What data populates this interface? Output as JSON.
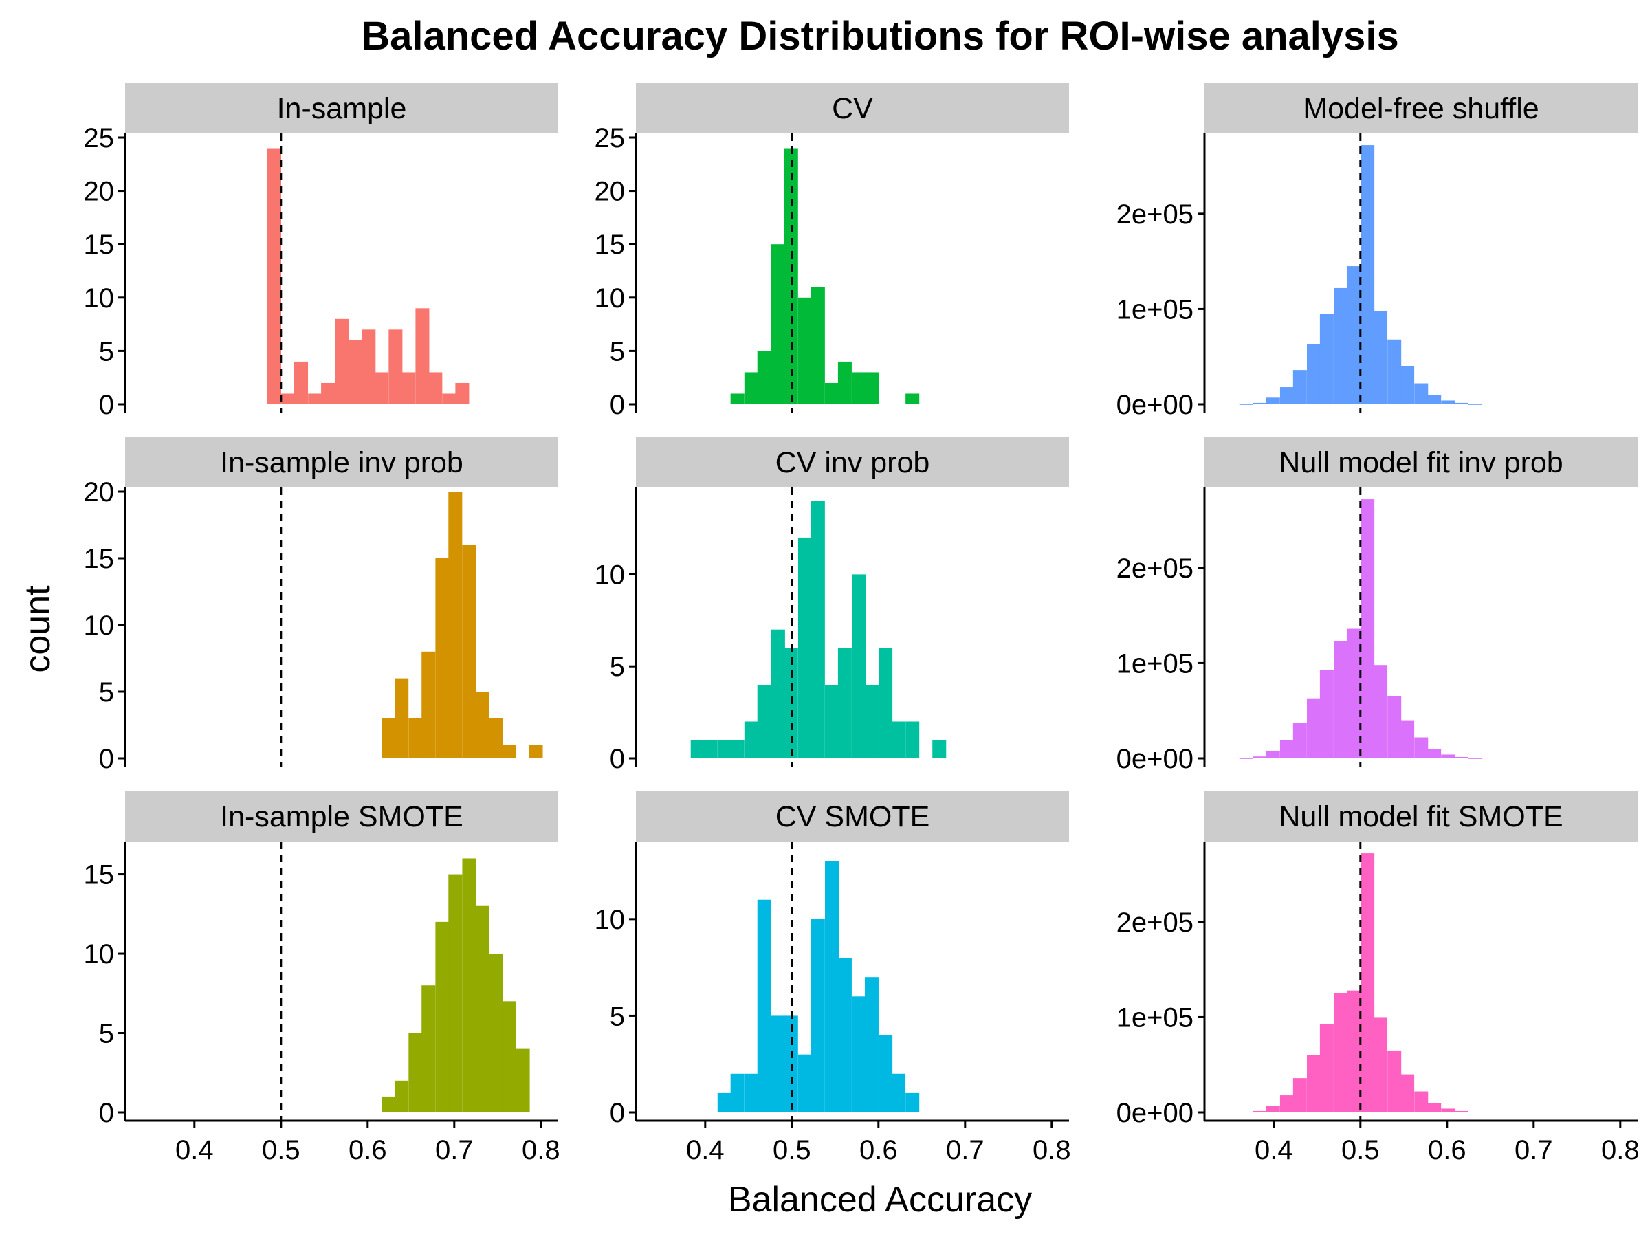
{
  "chart_data": {
    "type": "bar",
    "title": "Balanced Accuracy Distributions for ROI-wise analysis",
    "xlabel": "Balanced Accuracy",
    "ylabel": "count",
    "xlim": [
      0.32,
      0.82
    ],
    "x_ticks": [
      "0.4",
      "0.5",
      "0.6",
      "0.7",
      "0.8"
    ],
    "reference_line_x": 0.5,
    "grid": false,
    "legend": "none",
    "panels": [
      {
        "name": "In-sample",
        "color": "#F8766D",
        "binwidth": 0.0155,
        "ylim": [
          0,
          25
        ],
        "y_ticks": [
          {
            "value": 0,
            "label": "0"
          },
          {
            "value": 5,
            "label": "5"
          },
          {
            "value": 10,
            "label": "10"
          },
          {
            "value": 15,
            "label": "15"
          },
          {
            "value": 20,
            "label": "20"
          },
          {
            "value": 25,
            "label": "25"
          }
        ],
        "x": [
          0.492,
          0.508,
          0.523,
          0.539,
          0.554,
          0.57,
          0.585,
          0.601,
          0.616,
          0.632,
          0.647,
          0.663,
          0.678,
          0.694,
          0.709
        ],
        "values": [
          24,
          1,
          4,
          1,
          2,
          8,
          6,
          7,
          3,
          7,
          3,
          9,
          3,
          1,
          2
        ]
      },
      {
        "name": "CV",
        "color": "#00BA38",
        "binwidth": 0.0155,
        "ylim": [
          0,
          25
        ],
        "y_ticks": [
          {
            "value": 0,
            "label": "0"
          },
          {
            "value": 5,
            "label": "5"
          },
          {
            "value": 10,
            "label": "10"
          },
          {
            "value": 15,
            "label": "15"
          },
          {
            "value": 20,
            "label": "20"
          },
          {
            "value": 25,
            "label": "25"
          }
        ],
        "x": [
          0.437,
          0.453,
          0.468,
          0.484,
          0.499,
          0.515,
          0.53,
          0.546,
          0.561,
          0.577,
          0.592,
          0.608,
          0.623,
          0.639
        ],
        "values": [
          1,
          3,
          5,
          15,
          24,
          10,
          11,
          2,
          4,
          3,
          3,
          0,
          0,
          1
        ]
      },
      {
        "name": "Model-free shuffle",
        "color": "#619CFF",
        "binwidth": 0.0155,
        "ylim": [
          0,
          280000
        ],
        "y_ticks": [
          {
            "value": 0,
            "label": "0e+00"
          },
          {
            "value": 100000,
            "label": "1e+05"
          },
          {
            "value": 200000,
            "label": "2e+05"
          }
        ],
        "x": [
          0.368,
          0.384,
          0.399,
          0.415,
          0.43,
          0.446,
          0.461,
          0.477,
          0.492,
          0.508,
          0.523,
          0.539,
          0.554,
          0.57,
          0.585,
          0.601,
          0.616,
          0.632
        ],
        "values": [
          500,
          1500,
          7000,
          18000,
          36000,
          63000,
          95000,
          122000,
          145000,
          272000,
          98000,
          68000,
          40000,
          22000,
          10000,
          4000,
          1500,
          500
        ]
      },
      {
        "name": "In-sample inv prob",
        "color": "#D39200",
        "binwidth": 0.0155,
        "ylim": [
          0,
          20
        ],
        "y_ticks": [
          {
            "value": 0,
            "label": "0"
          },
          {
            "value": 5,
            "label": "5"
          },
          {
            "value": 10,
            "label": "10"
          },
          {
            "value": 15,
            "label": "15"
          },
          {
            "value": 20,
            "label": "20"
          }
        ],
        "x": [
          0.624,
          0.639,
          0.655,
          0.67,
          0.686,
          0.701,
          0.717,
          0.732,
          0.748,
          0.763,
          0.779,
          0.794
        ],
        "values": [
          3,
          6,
          3,
          8,
          15,
          20,
          16,
          5,
          3,
          1,
          0,
          1
        ]
      },
      {
        "name": "CV inv prob",
        "color": "#00C19F",
        "binwidth": 0.0155,
        "ylim": [
          0,
          14.5
        ],
        "y_ticks": [
          {
            "value": 0,
            "label": "0"
          },
          {
            "value": 5,
            "label": "5"
          },
          {
            "value": 10,
            "label": "10"
          }
        ],
        "x": [
          0.391,
          0.406,
          0.422,
          0.437,
          0.453,
          0.468,
          0.484,
          0.499,
          0.515,
          0.53,
          0.546,
          0.561,
          0.577,
          0.592,
          0.608,
          0.623,
          0.639,
          0.654,
          0.67
        ],
        "values": [
          1,
          1,
          1,
          1,
          2,
          4,
          7,
          6,
          12,
          14,
          4,
          6,
          10,
          4,
          6,
          2,
          2,
          0,
          1
        ]
      },
      {
        "name": "Null model fit inv prob",
        "color": "#DB72FB",
        "binwidth": 0.0155,
        "ylim": [
          0,
          280000
        ],
        "y_ticks": [
          {
            "value": 0,
            "label": "0e+00"
          },
          {
            "value": 100000,
            "label": "1e+05"
          },
          {
            "value": 200000,
            "label": "2e+05"
          }
        ],
        "x": [
          0.368,
          0.384,
          0.399,
          0.415,
          0.43,
          0.446,
          0.461,
          0.477,
          0.492,
          0.508,
          0.523,
          0.539,
          0.554,
          0.57,
          0.585,
          0.601,
          0.616,
          0.632
        ],
        "values": [
          500,
          2000,
          8000,
          19000,
          37000,
          63000,
          93000,
          123000,
          136000,
          272000,
          98000,
          65000,
          40000,
          22000,
          10000,
          4000,
          1500,
          500
        ]
      },
      {
        "name": "In-sample SMOTE",
        "color": "#93AA00",
        "binwidth": 0.0155,
        "ylim": [
          0,
          16.8
        ],
        "y_ticks": [
          {
            "value": 0,
            "label": "0"
          },
          {
            "value": 5,
            "label": "5"
          },
          {
            "value": 10,
            "label": "10"
          },
          {
            "value": 15,
            "label": "15"
          }
        ],
        "x": [
          0.624,
          0.639,
          0.655,
          0.67,
          0.686,
          0.701,
          0.717,
          0.732,
          0.748,
          0.763,
          0.779
        ],
        "values": [
          1,
          2,
          5,
          8,
          12,
          15,
          16,
          13,
          10,
          7,
          4
        ]
      },
      {
        "name": "CV SMOTE",
        "color": "#00B9E3",
        "binwidth": 0.0155,
        "ylim": [
          0,
          13.8
        ],
        "y_ticks": [
          {
            "value": 0,
            "label": "0"
          },
          {
            "value": 5,
            "label": "5"
          },
          {
            "value": 10,
            "label": "10"
          }
        ],
        "x": [
          0.422,
          0.437,
          0.453,
          0.468,
          0.484,
          0.499,
          0.515,
          0.53,
          0.546,
          0.561,
          0.577,
          0.592,
          0.608,
          0.623,
          0.639
        ],
        "values": [
          1,
          2,
          2,
          11,
          5,
          5,
          3,
          10,
          13,
          8,
          6,
          7,
          4,
          2,
          1
        ]
      },
      {
        "name": "Null model fit SMOTE",
        "color": "#FF61C3",
        "binwidth": 0.0155,
        "ylim": [
          0,
          280000
        ],
        "y_ticks": [
          {
            "value": 0,
            "label": "0e+00"
          },
          {
            "value": 100000,
            "label": "1e+05"
          },
          {
            "value": 200000,
            "label": "2e+05"
          }
        ],
        "x": [
          0.384,
          0.399,
          0.415,
          0.43,
          0.446,
          0.461,
          0.477,
          0.492,
          0.508,
          0.523,
          0.539,
          0.554,
          0.57,
          0.585,
          0.601,
          0.616
        ],
        "values": [
          1500,
          7000,
          18000,
          36000,
          60000,
          93000,
          125000,
          128000,
          272000,
          100000,
          65000,
          40000,
          22000,
          10000,
          4000,
          1500
        ]
      }
    ]
  }
}
